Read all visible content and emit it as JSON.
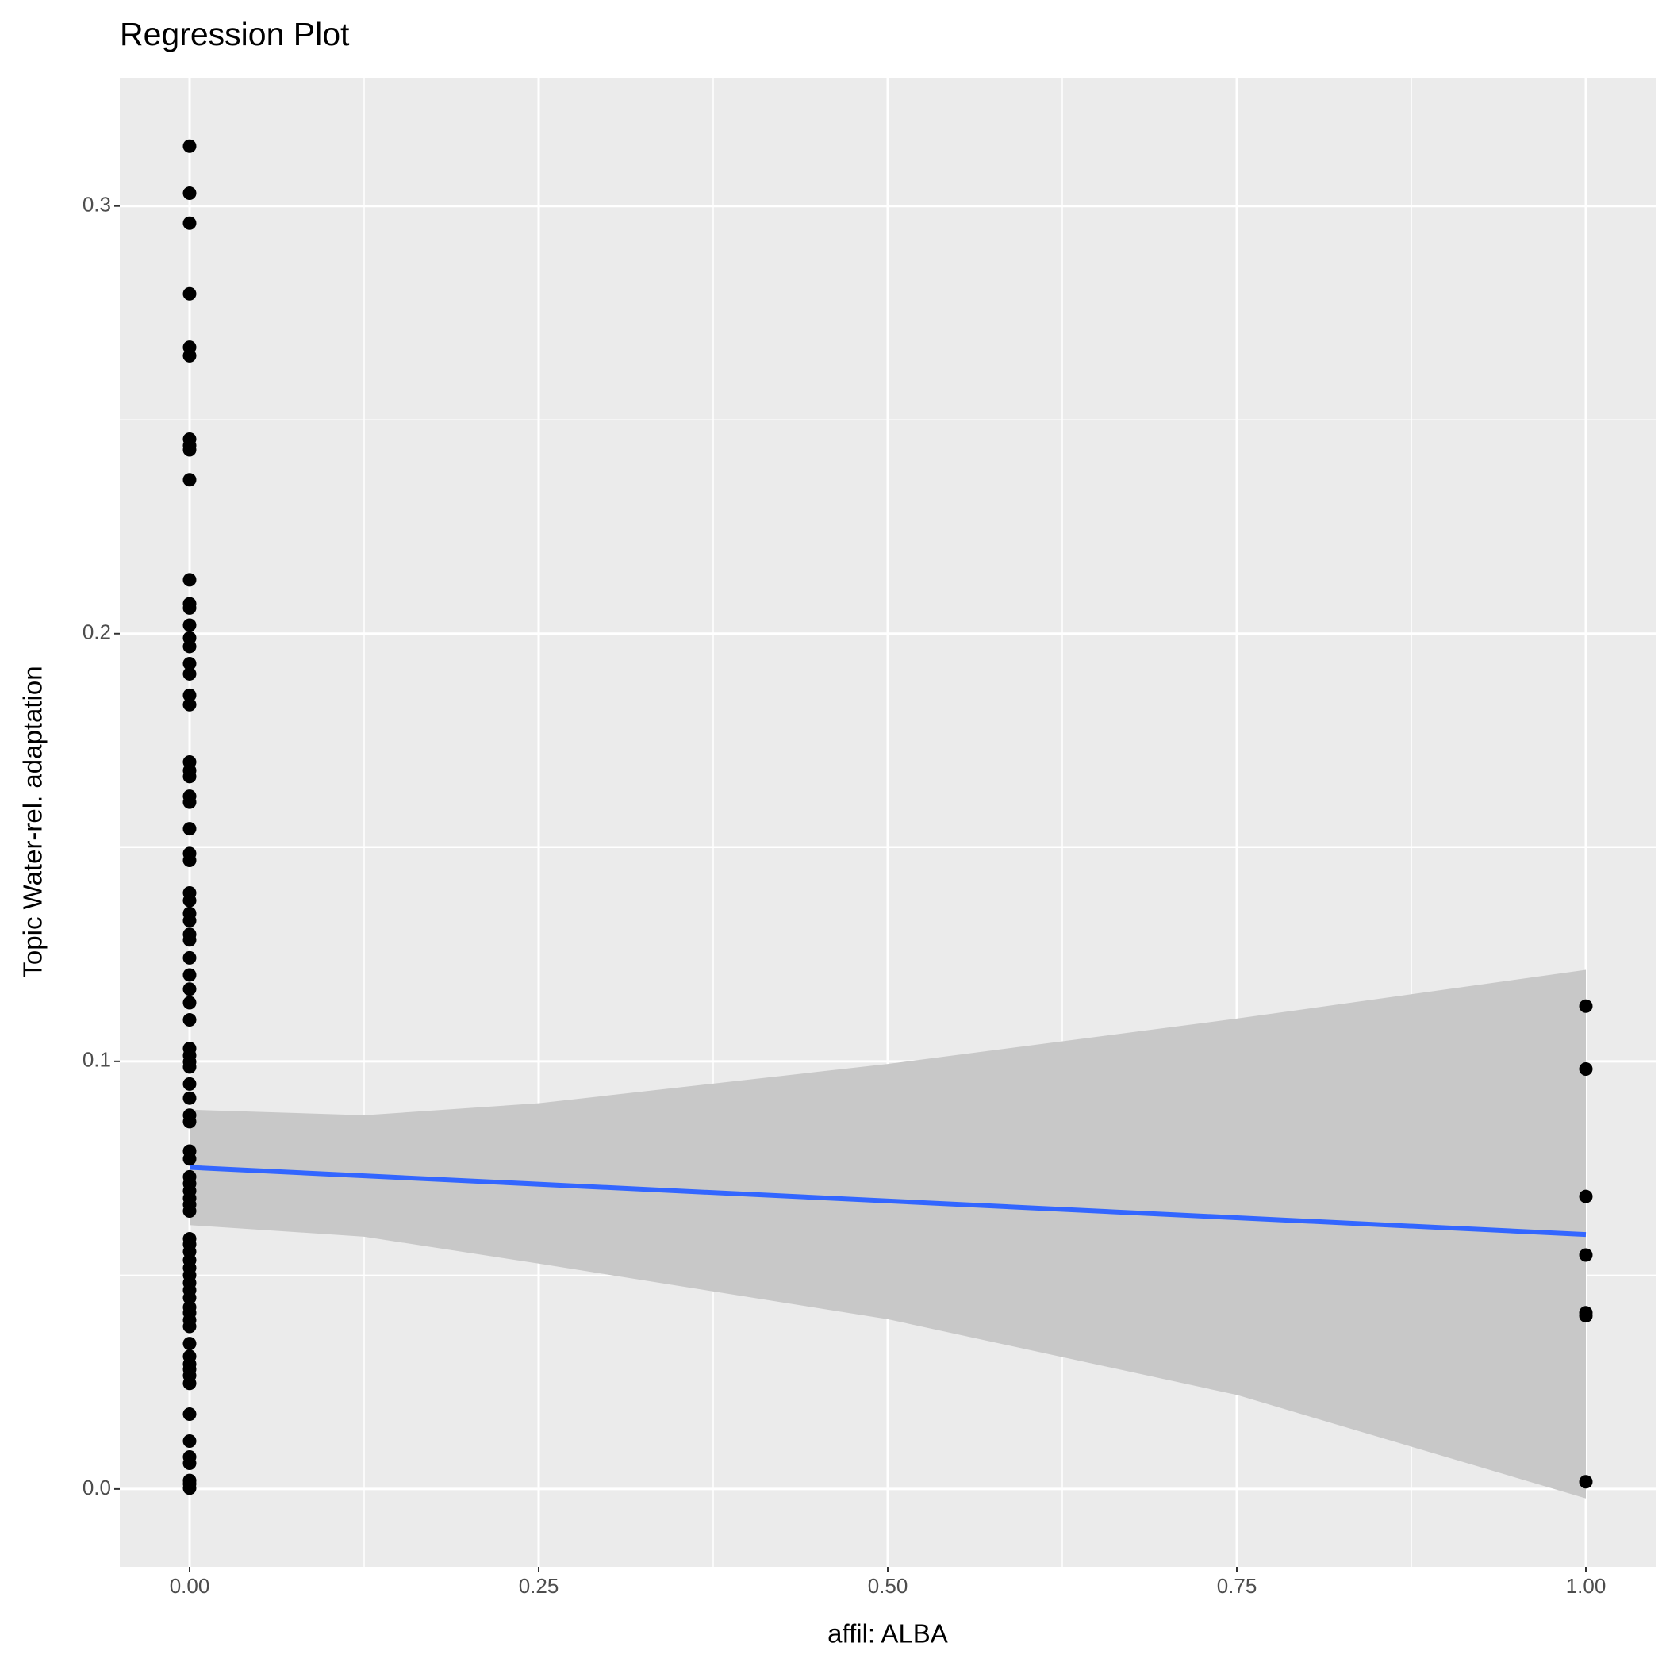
{
  "chart_data": {
    "type": "scatter",
    "title": "Regression Plot",
    "x_label": "affil: ALBA",
    "y_label": "Topic Water-rel. adaptation",
    "xlim": [
      -0.05,
      1.05
    ],
    "ylim": [
      -0.0182,
      0.33
    ],
    "xticks": [
      {
        "value": 0,
        "label": "0.00"
      },
      {
        "value": 0.25,
        "label": "0.25"
      },
      {
        "value": 0.5,
        "label": "0.50"
      },
      {
        "value": 0.75,
        "label": "0.75"
      },
      {
        "value": 1,
        "label": "1.00"
      }
    ],
    "yticks": [
      {
        "value": 0,
        "label": "0.0"
      },
      0.1,
      0.2,
      0.3
    ],
    "xminor": [
      0.125,
      0.375,
      0.625,
      0.875
    ],
    "yminor": [
      0.05,
      0.15,
      0.25
    ],
    "grid": true,
    "points": {
      "color": "#000000",
      "x": [
        0,
        0,
        0,
        0,
        0,
        0,
        0,
        0,
        0,
        0,
        0,
        0,
        0,
        0,
        0,
        0,
        0,
        0,
        0,
        0,
        0,
        0,
        0,
        0,
        0,
        0,
        0,
        0,
        0,
        0,
        0,
        0,
        0,
        0,
        0,
        0,
        0,
        0,
        0,
        0,
        0,
        0,
        0,
        0,
        0,
        0,
        0,
        0,
        0,
        0,
        0,
        0,
        0,
        0,
        0,
        0,
        0,
        0,
        0,
        0,
        0,
        0,
        0,
        0,
        0,
        0,
        0,
        0,
        0,
        0,
        0,
        0,
        0,
        0,
        0,
        0,
        0,
        0,
        0,
        0,
        0,
        1,
        1,
        1,
        1,
        1,
        1,
        1
      ],
      "values": [
        0.314,
        0.303,
        0.296,
        0.2795,
        0.267,
        0.265,
        0.2455,
        0.244,
        0.243,
        0.236,
        0.2126,
        0.207,
        0.206,
        0.202,
        0.199,
        0.197,
        0.193,
        0.1906,
        0.1856,
        0.1834,
        0.17,
        0.168,
        0.1666,
        0.162,
        0.1606,
        0.1544,
        0.1486,
        0.147,
        0.1394,
        0.1376,
        0.1346,
        0.1329,
        0.1297,
        0.1284,
        0.1242,
        0.1202,
        0.1169,
        0.1137,
        0.1097,
        0.103,
        0.1014,
        0.0999,
        0.0987,
        0.0947,
        0.0914,
        0.0874,
        0.0859,
        0.079,
        0.0772,
        0.073,
        0.0714,
        0.0697,
        0.068,
        0.0665,
        0.065,
        0.0585,
        0.0572,
        0.0555,
        0.0535,
        0.0517,
        0.05,
        0.0482,
        0.0465,
        0.0447,
        0.0425,
        0.0412,
        0.0395,
        0.038,
        0.034,
        0.031,
        0.0292,
        0.028,
        0.0265,
        0.0247,
        0.0175,
        0.0112,
        0.0075,
        0.006,
        0.002,
        0.0012,
        0.0002,
        0.1129,
        0.0982,
        0.0684,
        0.0547,
        0.0412,
        0.0405,
        0.0017
      ]
    },
    "line": {
      "color": "#3366ff",
      "x": [
        0,
        1
      ],
      "values": [
        0.0752,
        0.0595
      ]
    },
    "band": {
      "color": "#c8c8c8",
      "x": [
        0,
        0.125,
        0.25,
        0.5,
        0.75,
        1
      ],
      "upper": [
        0.0887,
        0.0874,
        0.0902,
        0.0994,
        0.11,
        0.1214
      ],
      "lower": [
        0.0617,
        0.059,
        0.0527,
        0.0397,
        0.022,
        -0.0022
      ]
    }
  }
}
